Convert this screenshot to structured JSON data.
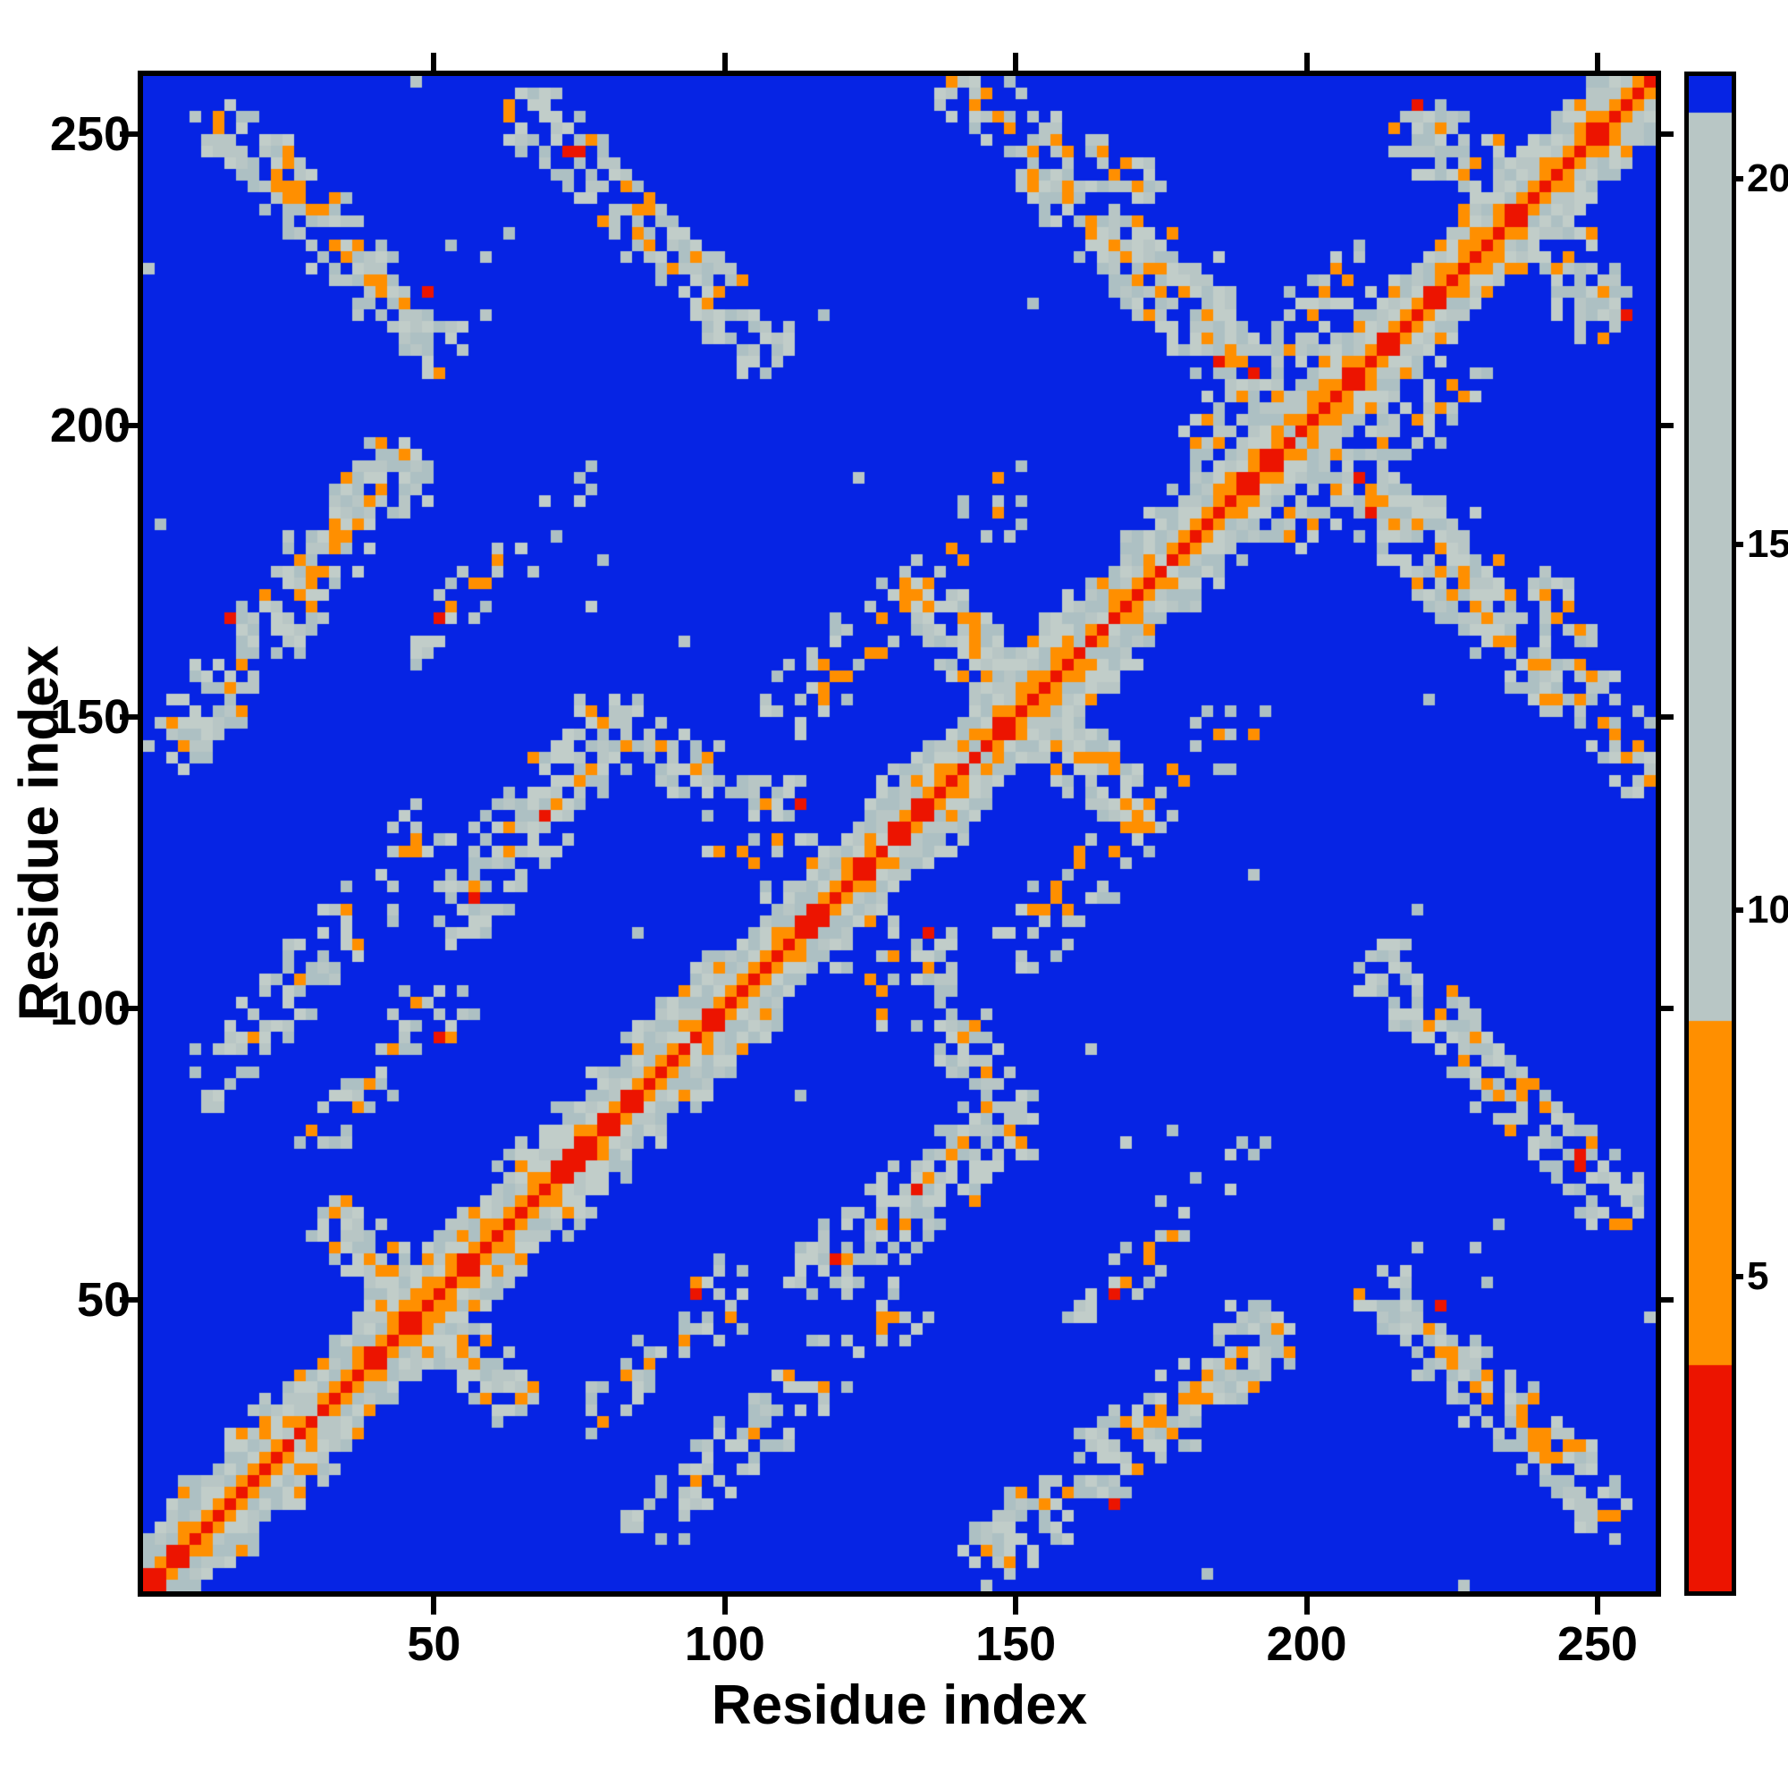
{
  "figure": {
    "background": "#ffffff"
  },
  "chart_data": {
    "type": "heatmap",
    "title": "",
    "xlabel": "Residue index",
    "ylabel": "Residue index",
    "x_range": [
      0,
      260
    ],
    "y_range": [
      0,
      260
    ],
    "x_ticks": [
      50,
      100,
      150,
      200,
      250
    ],
    "y_ticks": [
      50,
      100,
      150,
      200,
      250
    ],
    "matrix_size": 260,
    "cell_block": 2,
    "symmetric": true,
    "grid": false,
    "legend_position": "right-colorbar",
    "colorbar": {
      "range": [
        0.7,
        21.4
      ],
      "ticks": [
        5,
        10,
        15,
        20
      ],
      "bands": [
        {
          "max": 3.8,
          "color": "#ec1400"
        },
        {
          "max": 8.5,
          "color": "#ff8f00"
        },
        {
          "max": 20.9,
          "color": "#b8c6c5"
        },
        {
          "max": 99,
          "color": "#0624e4"
        }
      ]
    },
    "palette": {
      "background_blue": "#0624e4",
      "gray_shades": [
        "#b8c6c5",
        "#adc0c3",
        "#c1cdc9"
      ],
      "orange": "#ff8f00",
      "red": "#ec1400",
      "frame": "#000000"
    },
    "diagonal_band": {
      "red_halfwidth_res": 1,
      "orange_halfwidth_res": 4,
      "gray_halfwidth_res": 9
    },
    "feature_encoding": "segments [x1,y1,x2,y2,width,density] in residue coordinates; matrix symmetric (each segment mirrored across diagonal)",
    "contact_features": [
      [
        34,
        62,
        62,
        34,
        8,
        0.8
      ],
      [
        6,
        146,
        44,
        192,
        9,
        0.75
      ],
      [
        14,
        252,
        50,
        214,
        8,
        0.65
      ],
      [
        12,
        88,
        48,
        130,
        7,
        0.45
      ],
      [
        30,
        78,
        54,
        102,
        6,
        0.3
      ],
      [
        54,
        116,
        80,
        148,
        9,
        0.7
      ],
      [
        80,
        148,
        110,
        134,
        8,
        0.55
      ],
      [
        102,
        138,
        132,
        110,
        7,
        0.45
      ],
      [
        68,
        252,
        106,
        214,
        8,
        0.65
      ],
      [
        48,
        164,
        76,
        190,
        6,
        0.3
      ],
      [
        112,
        152,
        146,
        186,
        7,
        0.4
      ],
      [
        134,
        170,
        170,
        134,
        8,
        0.85
      ],
      [
        150,
        248,
        188,
        210,
        8,
        0.55
      ],
      [
        140,
        258,
        172,
        242,
        6,
        0.45
      ],
      [
        168,
        232,
        232,
        168,
        10,
        0.85
      ],
      [
        182,
        198,
        208,
        226,
        7,
        0.55
      ],
      [
        220,
        252,
        252,
        220,
        9,
        0.7
      ],
      [
        96,
        134,
        134,
        96,
        6,
        0.3
      ]
    ]
  }
}
